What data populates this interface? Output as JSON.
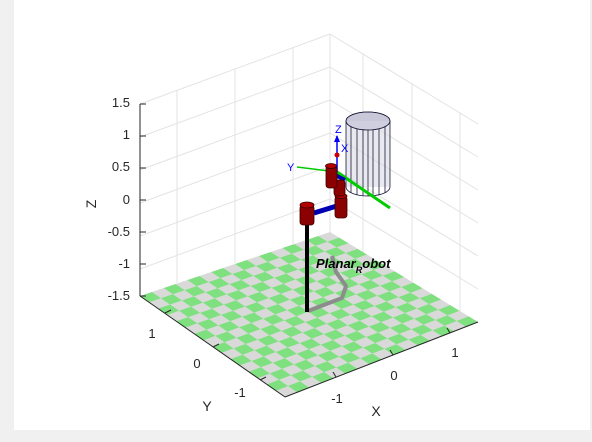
{
  "axes": {
    "xlabel": "X",
    "ylabel": "Y",
    "zlabel": "Z",
    "z_ticks": [
      "1.5",
      "1",
      "0.5",
      "0",
      "-0.5",
      "-1",
      "-1.5"
    ],
    "y_ticks": [
      "1",
      "0",
      "-1"
    ],
    "x_ticks": [
      "-1",
      "0",
      "1"
    ]
  },
  "robot": {
    "name_main": "Planar",
    "name_sub": "R",
    "name_tail": "obot"
  },
  "frame": {
    "z_label": "Z",
    "x_label": "X",
    "y_label": "Y"
  },
  "colors": {
    "floor_light": "#d9d9d9",
    "floor_green": "#7ee07e",
    "link": "#0000b3",
    "joint": "#8b0000",
    "pedestal": "#000000",
    "shadow": "#8c8c8c",
    "frame_z": "#0000ff",
    "frame_x": "#00cc00",
    "frame_y": "#0000ff"
  }
}
